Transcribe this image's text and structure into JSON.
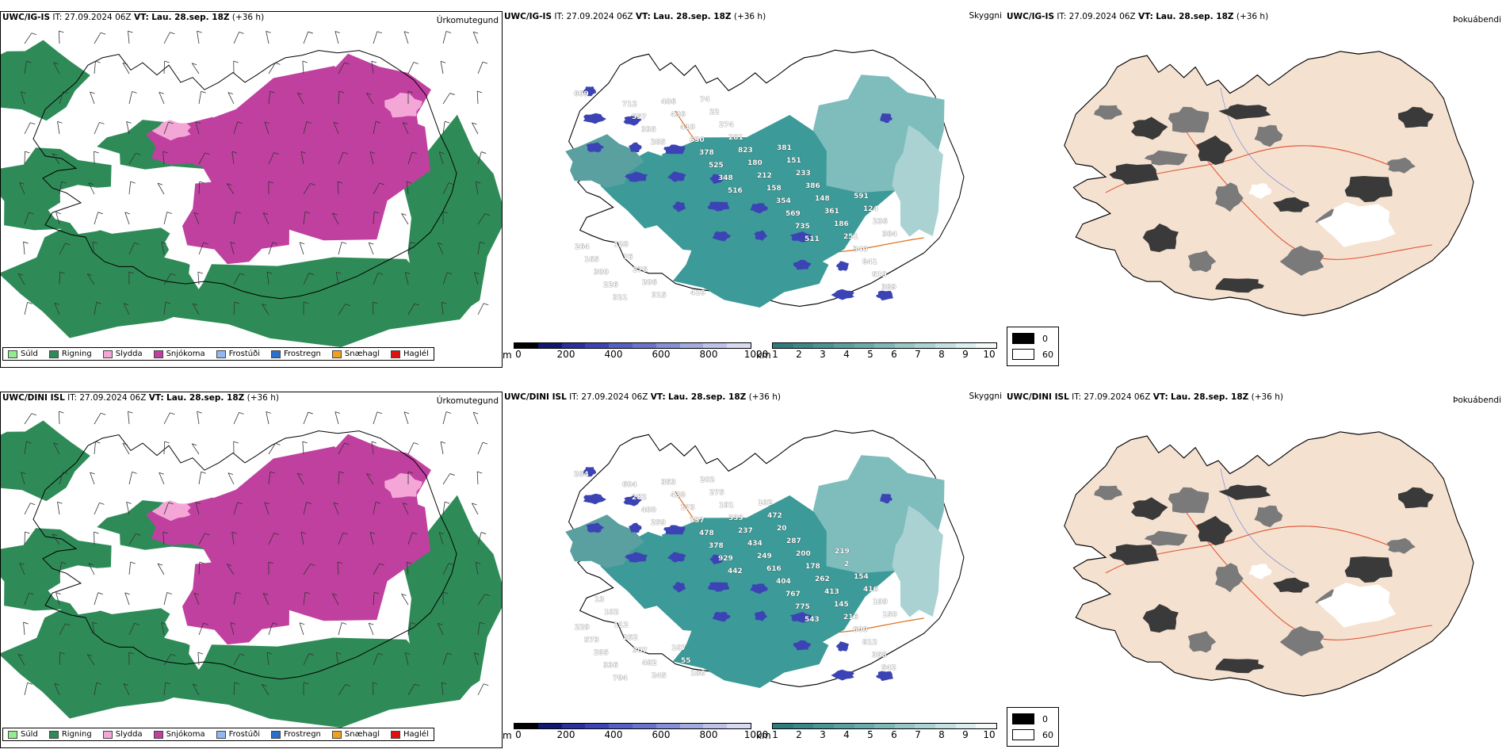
{
  "rows": [
    {
      "model": "UWC/IG-IS",
      "it_label": "IT:",
      "it_value": "27.09.2024 06Z",
      "vt_label": "VT:",
      "vt_value": "Lau. 28.sep. 18Z",
      "lead": "(+36 h)",
      "precip_title": "Úrkomutegund",
      "vis_title": "Skyggni",
      "cloud_title": "Þokuábendi",
      "vis_labels": [
        "669",
        "285",
        "516",
        "511",
        "389",
        "335",
        "348",
        "735",
        "619",
        "557",
        "525",
        "569",
        "841",
        "712",
        "378",
        "354",
        "340",
        "321",
        "630",
        "158",
        "251",
        "226",
        "410",
        "212",
        "186",
        "300",
        "436",
        "180",
        "361",
        "165",
        "406",
        "823",
        "148",
        "264",
        "315",
        "281",
        "386",
        "384",
        "206",
        "274",
        "233",
        "236",
        "276",
        "22",
        "151",
        "124",
        "76",
        "74",
        "381",
        "591",
        "128",
        "410"
      ]
    },
    {
      "model": "UWC/DINI ISL",
      "it_label": "IT:",
      "it_value": "27.09.2024 06Z",
      "vt_label": "VT:",
      "vt_value": "Lau. 28.sep. 18Z",
      "lead": "(+36 h)",
      "precip_title": "Úrkomutegund",
      "vis_title": "Skyggni",
      "cloud_title": "Þokuábendi",
      "vis_labels": [
        "284",
        "259",
        "442",
        "543",
        "542",
        "400",
        "929",
        "775",
        "358",
        "282",
        "378",
        "767",
        "812",
        "604",
        "478",
        "404",
        "600",
        "794",
        "737",
        "616",
        "216",
        "336",
        "173",
        "249",
        "145",
        "295",
        "438",
        "434",
        "413",
        "573",
        "353",
        "237",
        "262",
        "229",
        "245",
        "339",
        "178",
        "150",
        "482",
        "191",
        "200",
        "199",
        "307",
        "275",
        "287",
        "416",
        "252",
        "202",
        "20",
        "154",
        "112",
        "180",
        "472",
        "2",
        "102",
        "55",
        "102",
        "219",
        "13",
        "107"
      ]
    }
  ],
  "precip_legend": [
    {
      "label": "Súld",
      "color": "#90ee90"
    },
    {
      "label": "Rigning",
      "color": "#2e8b57"
    },
    {
      "label": "Slydda",
      "color": "#f4a6d7"
    },
    {
      "label": "Snjókoma",
      "color": "#c040a0"
    },
    {
      "label": "Frostúði",
      "color": "#8fb8f0"
    },
    {
      "label": "Frostregn",
      "color": "#2a6fc9"
    },
    {
      "label": "Snæhagl",
      "color": "#f0a020"
    },
    {
      "label": "Haglél",
      "color": "#e01010"
    }
  ],
  "ceiling_bar": {
    "unit": "m",
    "ticks": [
      "0",
      "200",
      "400",
      "600",
      "800",
      "1000"
    ],
    "colors": [
      "#000000",
      "#101870",
      "#2a2f9e",
      "#3c44b5",
      "#5560c4",
      "#6a74cc",
      "#8590d6",
      "#a3aade",
      "#bfc2e8",
      "#d8daf2"
    ]
  },
  "visibility_bar": {
    "unit": "km",
    "ticks": [
      "1",
      "2",
      "3",
      "4",
      "5",
      "6",
      "7",
      "8",
      "9",
      "10"
    ],
    "colors": [
      "#2f7c7c",
      "#3a8888",
      "#4a9494",
      "#5aa0a0",
      "#6cabab",
      "#80b8b8",
      "#96c6c6",
      "#acd3d3",
      "#c4e1e1",
      "#dcefef",
      "#f4f9f9"
    ]
  },
  "cloud_legend": [
    {
      "label": "0",
      "color": "#000000"
    },
    {
      "label": "60",
      "color": "#ffffff"
    }
  ],
  "colors": {
    "rain": "#2e8b57",
    "snow": "#c040a0",
    "sleet": "#f4a6d7",
    "vis_teal": "#3c9a98",
    "coast": "#000000",
    "roads": "#e07020",
    "cloud_land": "#f5e1d0"
  }
}
